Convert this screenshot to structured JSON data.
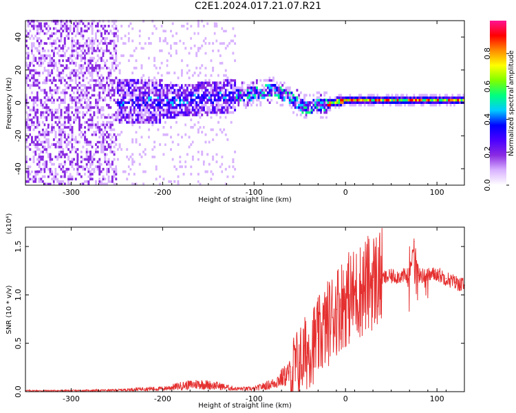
{
  "title": "C2E1.2024.017.21.07.R21",
  "colorbar": {
    "label": "Normalized spectral amplitude",
    "ticks": [
      "0.0",
      "0.2",
      "0.4",
      "0.6",
      "0.8"
    ],
    "range": [
      0,
      1
    ],
    "colors": [
      "#ffffff",
      "#d9b3ff",
      "#8a2be2",
      "#4b00ff",
      "#0000ff",
      "#00ccff",
      "#00ff7f",
      "#7fff00",
      "#ffff00",
      "#ff8c00",
      "#ff0000",
      "#ff1493"
    ]
  },
  "chart_data": [
    {
      "type": "heatmap",
      "xlabel": "Height of straight line (km)",
      "ylabel": "Frequency (Hz)",
      "xlim": [
        -350,
        130
      ],
      "ylim": [
        -50,
        50
      ],
      "xticks": [
        "-300",
        "-200",
        "-100",
        "0",
        "100"
      ],
      "yticks": [
        "-40",
        "-20",
        "0",
        "20",
        "40"
      ],
      "dominant_track": {
        "x": [
          -250,
          -200,
          -150,
          -100,
          -80,
          -60,
          -45,
          -35,
          -25,
          -10,
          0,
          50,
          100,
          130
        ],
        "frequency": [
          0,
          0,
          2,
          5,
          7,
          2,
          -4,
          -2,
          -2,
          0,
          1,
          1,
          1,
          1
        ]
      },
      "colormap": "rainbow"
    },
    {
      "type": "line",
      "xlabel": "Height of straight line (km)",
      "ylabel": "SNR (10 * v/v)",
      "yscale_note": "(x10⁴)",
      "xlim": [
        -350,
        130
      ],
      "ylim": [
        0,
        1.7
      ],
      "xticks": [
        "-300",
        "-200",
        "-100",
        "0",
        "100"
      ],
      "yticks": [
        "0.0",
        "0.5",
        "1.0",
        "1.5"
      ],
      "color": "#e53030",
      "x": [
        -350,
        -300,
        -250,
        -220,
        -200,
        -180,
        -160,
        -140,
        -120,
        -100,
        -80,
        -60,
        -50,
        -40,
        -30,
        -20,
        -10,
        0,
        10,
        20,
        30,
        50,
        70,
        75,
        80,
        90,
        100,
        110,
        120,
        130
      ],
      "y": [
        0.01,
        0.01,
        0.015,
        0.03,
        0.03,
        0.06,
        0.08,
        0.06,
        0.03,
        0.03,
        0.08,
        0.2,
        0.3,
        0.45,
        0.55,
        0.7,
        0.85,
        0.95,
        1.0,
        1.08,
        1.15,
        1.19,
        1.2,
        1.55,
        1.2,
        1.2,
        1.22,
        1.17,
        1.13,
        1.1
      ]
    }
  ]
}
